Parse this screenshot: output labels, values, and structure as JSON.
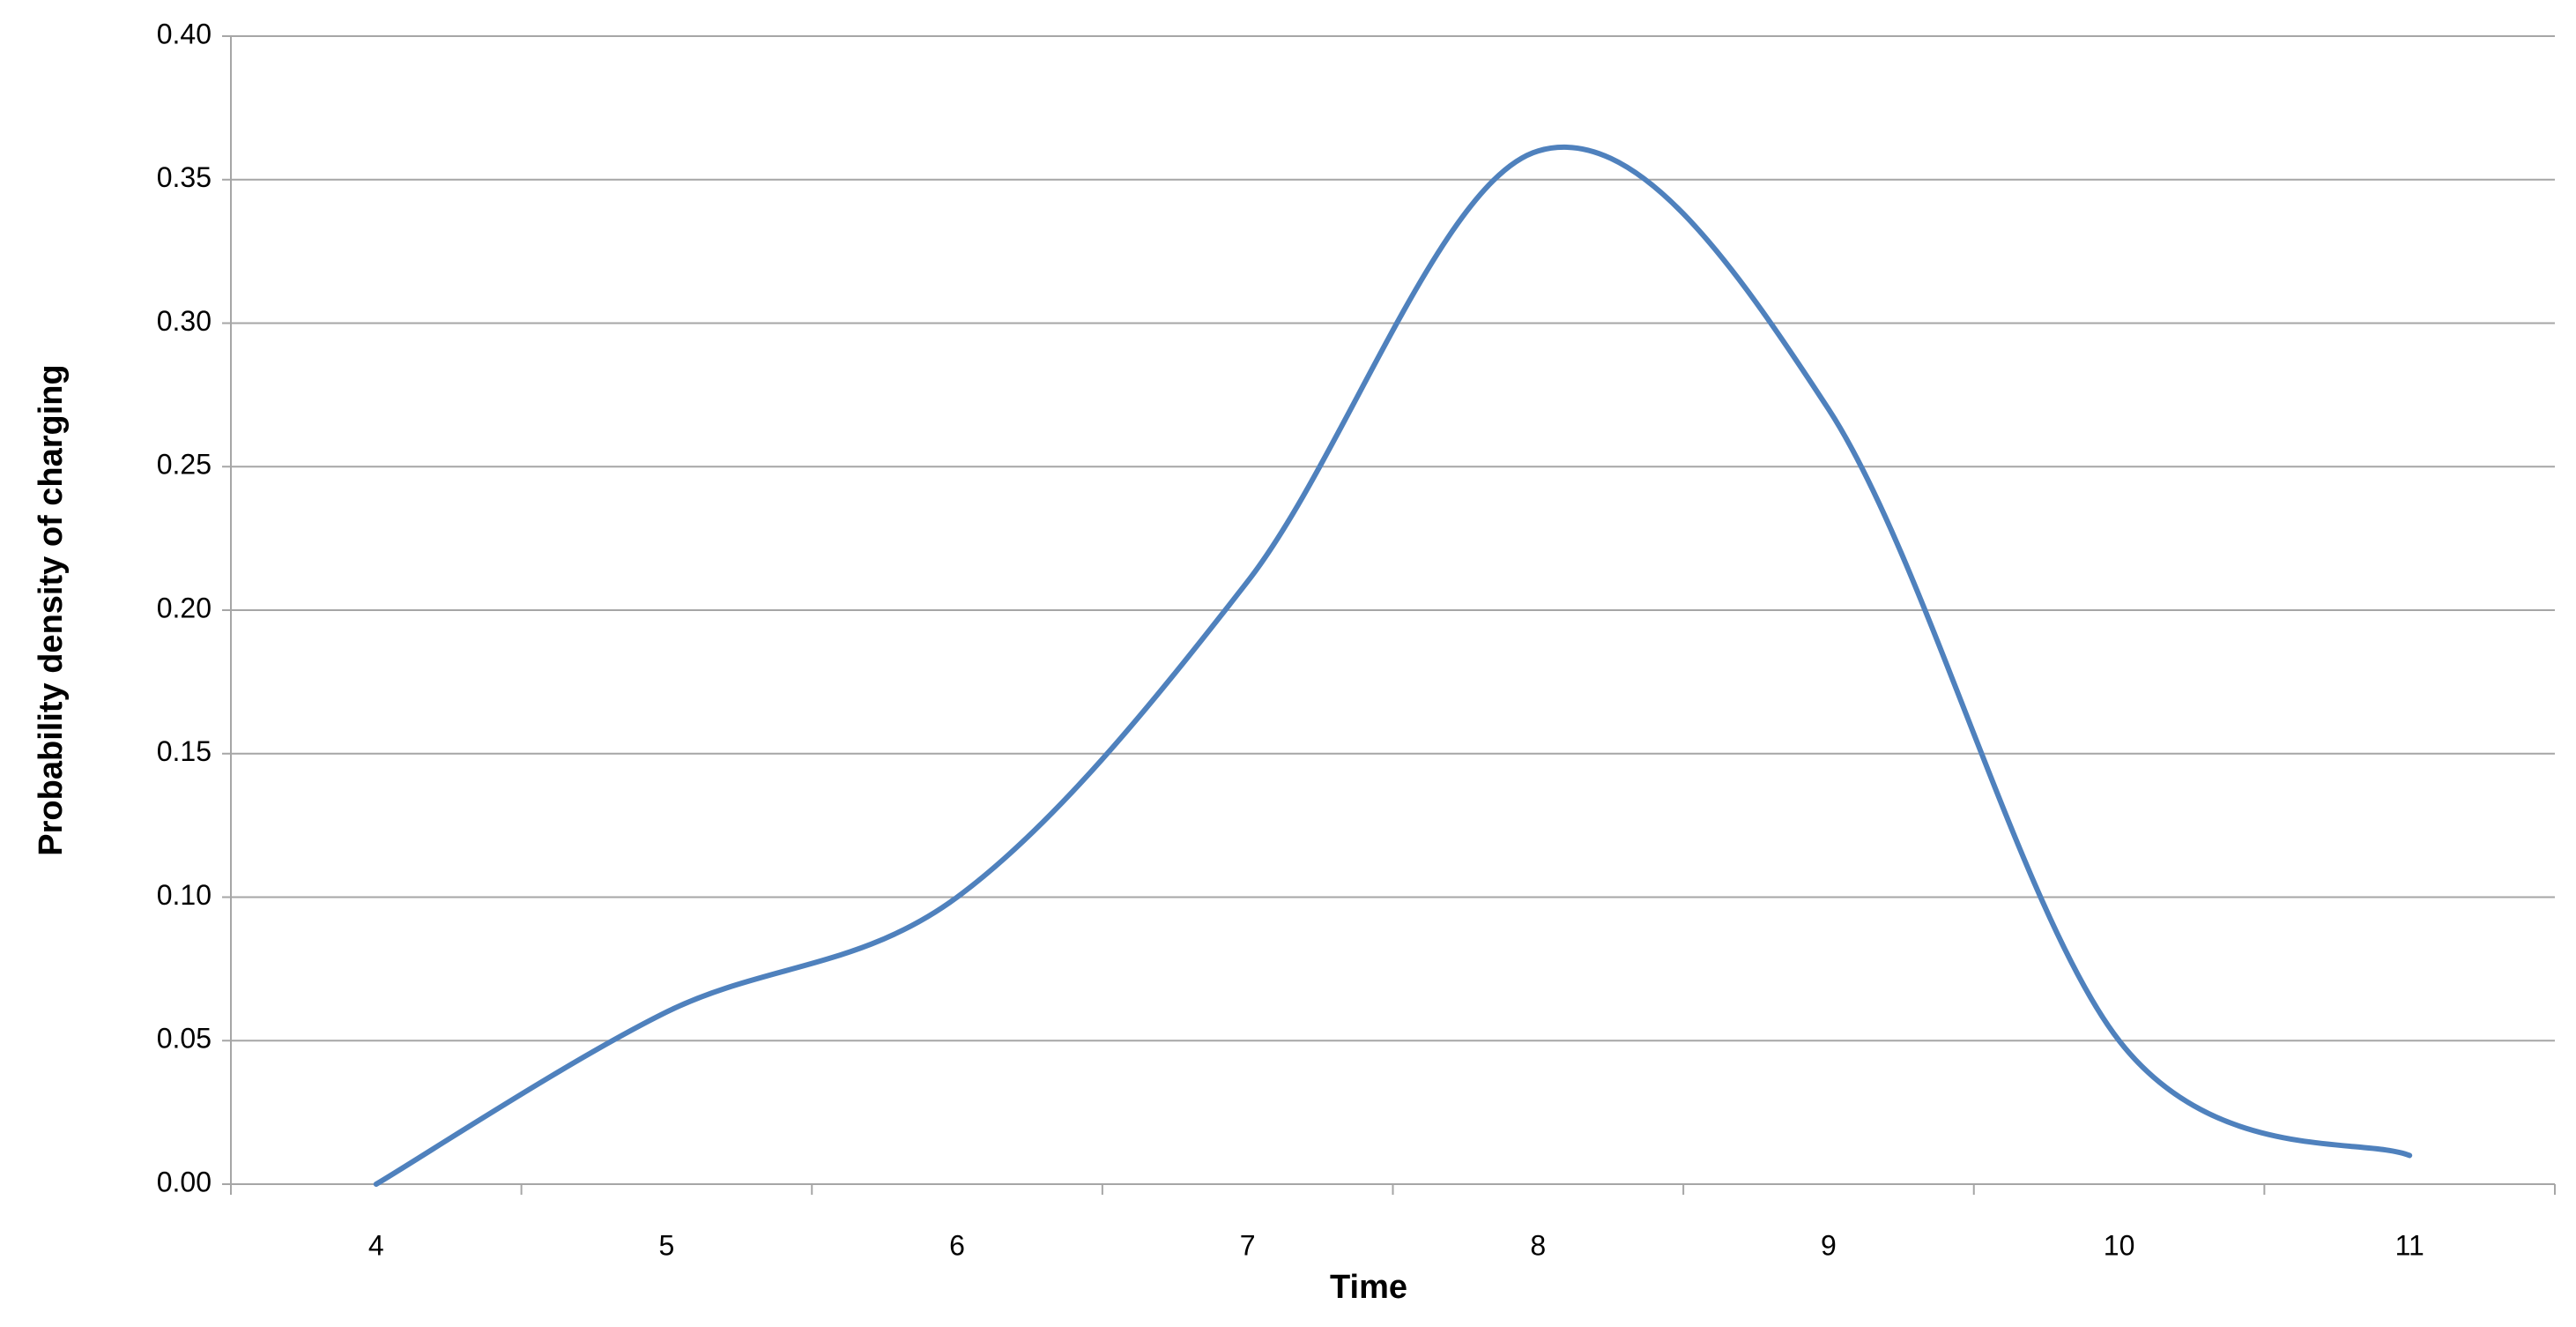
{
  "chart_data": {
    "type": "line",
    "x_label": "Time",
    "y_label": "Probability  density of charging",
    "categories": [
      "4",
      "5",
      "6",
      "7",
      "8",
      "9",
      "10",
      "11"
    ],
    "series": [
      {
        "name": "Probability density",
        "color": "#4f81bd",
        "values": [
          0.0,
          0.06,
          0.1,
          0.21,
          0.36,
          0.27,
          0.05,
          0.01
        ]
      }
    ],
    "ylim": [
      0,
      0.4
    ],
    "yticks": [
      {
        "value": 0,
        "label": "0.00"
      },
      {
        "value": 0.05,
        "label": "0.05"
      },
      {
        "value": 0.1,
        "label": "0.10"
      },
      {
        "value": 0.15,
        "label": "0.15"
      },
      {
        "value": 0.2,
        "label": "0.20"
      },
      {
        "value": 0.25,
        "label": "0.25"
      },
      {
        "value": 0.3,
        "label": "0.30"
      },
      {
        "value": 0.35,
        "label": "0.35"
      },
      {
        "value": 0.4,
        "label": "0.40"
      }
    ],
    "grid": true,
    "smooth": true
  }
}
